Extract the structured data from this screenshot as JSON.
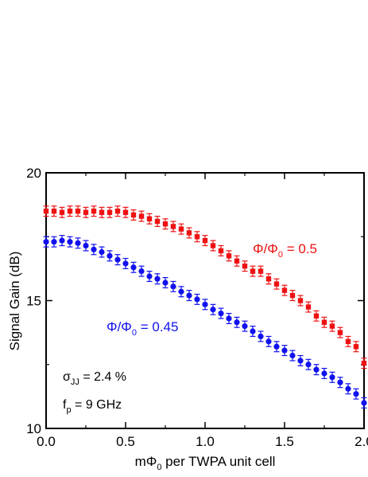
{
  "chart_data": {
    "type": "scatter",
    "title": "",
    "xlabel": "mΦ₀ per TWPA unit cell",
    "xlabel_main": "mΦ",
    "xlabel_sub": "0",
    "xlabel_rest": " per TWPA unit cell",
    "ylabel": "Signal Gain (dB)",
    "xlim": [
      0.0,
      2.0
    ],
    "ylim": [
      10,
      20
    ],
    "x_ticks": [
      0.0,
      0.5,
      1.0,
      1.5,
      2.0
    ],
    "x_tick_labels": [
      "0.0",
      "0.5",
      "1.0",
      "1.5",
      "2.0"
    ],
    "y_ticks": [
      10,
      15,
      20
    ],
    "y_tick_labels": [
      "10",
      "15",
      "20"
    ],
    "grid": false,
    "series": [
      {
        "name": "Φ/Φ₀ = 0.5",
        "label_main": "Φ/Φ",
        "label_sub": "0",
        "label_rest": " = 0.5",
        "color": "#ee1111",
        "marker": "square",
        "error": 0.2,
        "x": [
          0.0,
          0.05,
          0.1,
          0.15,
          0.2,
          0.25,
          0.3,
          0.35,
          0.4,
          0.45,
          0.5,
          0.55,
          0.6,
          0.65,
          0.7,
          0.75,
          0.8,
          0.85,
          0.9,
          0.95,
          1.0,
          1.05,
          1.1,
          1.15,
          1.2,
          1.25,
          1.3,
          1.35,
          1.4,
          1.45,
          1.5,
          1.55,
          1.6,
          1.65,
          1.7,
          1.75,
          1.8,
          1.85,
          1.9,
          1.95,
          2.0
        ],
        "y": [
          18.5,
          18.5,
          18.45,
          18.5,
          18.5,
          18.45,
          18.5,
          18.45,
          18.45,
          18.5,
          18.45,
          18.35,
          18.3,
          18.2,
          18.1,
          18.0,
          17.9,
          17.8,
          17.65,
          17.5,
          17.35,
          17.15,
          16.95,
          16.75,
          16.55,
          16.35,
          16.15,
          16.15,
          15.85,
          15.65,
          15.4,
          15.2,
          15.0,
          14.75,
          14.4,
          14.15,
          14.0,
          13.75,
          13.4,
          13.2,
          12.55
        ]
      },
      {
        "name": "Φ/Φ₀ = 0.45",
        "label_main": "Φ/Φ",
        "label_sub": "0",
        "label_rest": " = 0.45",
        "color": "#1111ee",
        "marker": "circle",
        "error": 0.2,
        "x": [
          0.0,
          0.05,
          0.1,
          0.15,
          0.2,
          0.25,
          0.3,
          0.35,
          0.4,
          0.45,
          0.5,
          0.55,
          0.6,
          0.65,
          0.7,
          0.75,
          0.8,
          0.85,
          0.9,
          0.95,
          1.0,
          1.05,
          1.1,
          1.15,
          1.2,
          1.25,
          1.3,
          1.35,
          1.4,
          1.45,
          1.5,
          1.55,
          1.6,
          1.65,
          1.7,
          1.75,
          1.8,
          1.85,
          1.9,
          1.95,
          2.0
        ],
        "y": [
          17.3,
          17.3,
          17.35,
          17.3,
          17.25,
          17.15,
          17.0,
          16.9,
          16.75,
          16.6,
          16.45,
          16.3,
          16.15,
          15.95,
          15.85,
          15.7,
          15.55,
          15.35,
          15.2,
          15.05,
          14.85,
          14.65,
          14.5,
          14.3,
          14.15,
          14.0,
          13.8,
          13.6,
          13.4,
          13.2,
          13.05,
          12.85,
          12.65,
          12.5,
          12.3,
          12.15,
          12.0,
          11.8,
          11.55,
          11.35,
          11.0
        ]
      }
    ],
    "annotations": {
      "sigma_main": "σ",
      "sigma_sub": "JJ",
      "sigma_rest": " = 2.4 %",
      "fp_main": "f",
      "fp_sub": "p",
      "fp_rest": " = 9 GHz"
    }
  }
}
